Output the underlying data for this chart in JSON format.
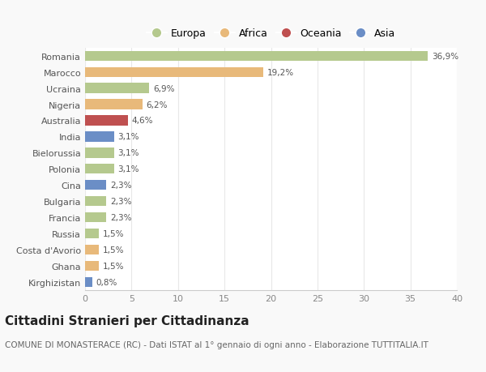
{
  "countries": [
    "Romania",
    "Marocco",
    "Ucraina",
    "Nigeria",
    "Australia",
    "India",
    "Bielorussia",
    "Polonia",
    "Cina",
    "Bulgaria",
    "Francia",
    "Russia",
    "Costa d'Avorio",
    "Ghana",
    "Kirghizistan"
  ],
  "values": [
    36.9,
    19.2,
    6.9,
    6.2,
    4.6,
    3.1,
    3.1,
    3.1,
    2.3,
    2.3,
    2.3,
    1.5,
    1.5,
    1.5,
    0.8
  ],
  "labels": [
    "36,9%",
    "19,2%",
    "6,9%",
    "6,2%",
    "4,6%",
    "3,1%",
    "3,1%",
    "3,1%",
    "2,3%",
    "2,3%",
    "2,3%",
    "1,5%",
    "1,5%",
    "1,5%",
    "0,8%"
  ],
  "continents": [
    "Europa",
    "Africa",
    "Europa",
    "Africa",
    "Oceania",
    "Asia",
    "Europa",
    "Europa",
    "Asia",
    "Europa",
    "Europa",
    "Europa",
    "Africa",
    "Africa",
    "Asia"
  ],
  "colors": {
    "Europa": "#b5c98e",
    "Africa": "#e8b97a",
    "Oceania": "#bf5050",
    "Asia": "#6b8ec6"
  },
  "legend_order": [
    "Europa",
    "Africa",
    "Oceania",
    "Asia"
  ],
  "title": "Cittadini Stranieri per Cittadinanza",
  "subtitle": "COMUNE DI MONASTERACE (RC) - Dati ISTAT al 1° gennaio di ogni anno - Elaborazione TUTTITALIA.IT",
  "xlim": [
    0,
    40
  ],
  "xticks": [
    0,
    5,
    10,
    15,
    20,
    25,
    30,
    35,
    40
  ],
  "bg_color": "#f9f9f9",
  "plot_bg_color": "#ffffff",
  "grid_color": "#e8e8e8",
  "title_fontsize": 11,
  "subtitle_fontsize": 7.5,
  "bar_label_fontsize": 7.5,
  "ytick_fontsize": 8,
  "xtick_fontsize": 8,
  "legend_fontsize": 9,
  "bar_height": 0.62
}
